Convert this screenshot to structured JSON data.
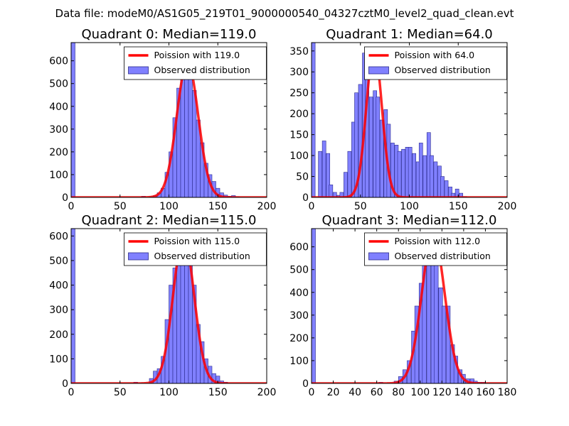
{
  "suptitle": "Data file: modeM0/AS1G05_219T01_9000000540_04327cztM0_level2_quad_clean.evt",
  "colors": {
    "bar_fill": "#8080ff",
    "bar_edge": "#2b2b8c",
    "poisson_line": "#ff0000",
    "axis": "#000000",
    "legend_edge": "#000000"
  },
  "chart_data": [
    {
      "type": "bar",
      "title": "Quadrant 0: Median=119.0",
      "xlim": [
        0,
        200
      ],
      "ylim": [
        0,
        680
      ],
      "xticks": [
        0,
        50,
        100,
        150,
        200
      ],
      "yticks": [
        0,
        100,
        200,
        300,
        400,
        500,
        600
      ],
      "legend": {
        "placement": "top-right",
        "line_label": "Poission with 119.0",
        "bar_label": "Observed distribution"
      },
      "poisson_mean": 119.0,
      "poisson_peak": 595,
      "bin_width": 4,
      "bins": [
        {
          "x": 0,
          "count": 680
        },
        {
          "x": 72,
          "count": 5
        },
        {
          "x": 80,
          "count": 3
        },
        {
          "x": 84,
          "count": 8
        },
        {
          "x": 88,
          "count": 20
        },
        {
          "x": 92,
          "count": 40
        },
        {
          "x": 96,
          "count": 110
        },
        {
          "x": 100,
          "count": 200
        },
        {
          "x": 104,
          "count": 350
        },
        {
          "x": 108,
          "count": 480
        },
        {
          "x": 112,
          "count": 520
        },
        {
          "x": 116,
          "count": 620
        },
        {
          "x": 120,
          "count": 580
        },
        {
          "x": 124,
          "count": 470
        },
        {
          "x": 128,
          "count": 340
        },
        {
          "x": 132,
          "count": 240
        },
        {
          "x": 136,
          "count": 150
        },
        {
          "x": 140,
          "count": 100
        },
        {
          "x": 144,
          "count": 70
        },
        {
          "x": 148,
          "count": 40
        },
        {
          "x": 152,
          "count": 20
        },
        {
          "x": 156,
          "count": 10
        },
        {
          "x": 160,
          "count": 5
        },
        {
          "x": 164,
          "count": 8
        },
        {
          "x": 168,
          "count": 3
        }
      ]
    },
    {
      "type": "bar",
      "title": "Quadrant 1: Median=64.0",
      "xlim": [
        0,
        200
      ],
      "ylim": [
        0,
        370
      ],
      "xticks": [
        0,
        50,
        100,
        150,
        200
      ],
      "yticks": [
        0,
        50,
        100,
        150,
        200,
        250,
        300,
        350
      ],
      "legend": {
        "placement": "top-right",
        "line_label": "Poission with 64.0",
        "bar_label": "Observed distribution"
      },
      "poisson_mean": 64.0,
      "poisson_peak": 355,
      "bin_width": 3.7,
      "bins": [
        {
          "x": 0,
          "count": 370
        },
        {
          "x": 7,
          "count": 110
        },
        {
          "x": 11,
          "count": 135
        },
        {
          "x": 15,
          "count": 105
        },
        {
          "x": 18,
          "count": 30
        },
        {
          "x": 22,
          "count": 12
        },
        {
          "x": 26,
          "count": 5
        },
        {
          "x": 29,
          "count": 12
        },
        {
          "x": 33,
          "count": 60
        },
        {
          "x": 37,
          "count": 110
        },
        {
          "x": 41,
          "count": 180
        },
        {
          "x": 44,
          "count": 250
        },
        {
          "x": 48,
          "count": 270
        },
        {
          "x": 52,
          "count": 345
        },
        {
          "x": 55,
          "count": 300
        },
        {
          "x": 59,
          "count": 240
        },
        {
          "x": 63,
          "count": 255
        },
        {
          "x": 66,
          "count": 240
        },
        {
          "x": 70,
          "count": 185
        },
        {
          "x": 74,
          "count": 210
        },
        {
          "x": 77,
          "count": 175
        },
        {
          "x": 81,
          "count": 130
        },
        {
          "x": 85,
          "count": 125
        },
        {
          "x": 88,
          "count": 110
        },
        {
          "x": 92,
          "count": 115
        },
        {
          "x": 96,
          "count": 120
        },
        {
          "x": 99,
          "count": 120
        },
        {
          "x": 103,
          "count": 105
        },
        {
          "x": 107,
          "count": 85
        },
        {
          "x": 110,
          "count": 130
        },
        {
          "x": 114,
          "count": 100
        },
        {
          "x": 118,
          "count": 155
        },
        {
          "x": 121,
          "count": 100
        },
        {
          "x": 125,
          "count": 85
        },
        {
          "x": 129,
          "count": 75
        },
        {
          "x": 132,
          "count": 50
        },
        {
          "x": 136,
          "count": 40
        },
        {
          "x": 140,
          "count": 25
        },
        {
          "x": 143,
          "count": 10
        },
        {
          "x": 147,
          "count": 20
        },
        {
          "x": 151,
          "count": 10
        },
        {
          "x": 155,
          "count": 2
        }
      ]
    },
    {
      "type": "bar",
      "title": "Quadrant 2: Median=115.0",
      "xlim": [
        0,
        200
      ],
      "ylim": [
        0,
        630
      ],
      "xticks": [
        0,
        50,
        100,
        150,
        200
      ],
      "yticks": [
        0,
        100,
        200,
        300,
        400,
        500,
        600
      ],
      "legend": {
        "placement": "top-right",
        "line_label": "Poission with 115.0",
        "bar_label": "Observed distribution"
      },
      "poisson_mean": 115.0,
      "poisson_peak": 595,
      "bin_width": 4,
      "bins": [
        {
          "x": 0,
          "count": 630
        },
        {
          "x": 64,
          "count": 5
        },
        {
          "x": 80,
          "count": 20
        },
        {
          "x": 84,
          "count": 50
        },
        {
          "x": 88,
          "count": 60
        },
        {
          "x": 92,
          "count": 110
        },
        {
          "x": 96,
          "count": 260
        },
        {
          "x": 100,
          "count": 400
        },
        {
          "x": 104,
          "count": 470
        },
        {
          "x": 108,
          "count": 480
        },
        {
          "x": 112,
          "count": 560
        },
        {
          "x": 116,
          "count": 550
        },
        {
          "x": 120,
          "count": 500
        },
        {
          "x": 124,
          "count": 400
        },
        {
          "x": 128,
          "count": 240
        },
        {
          "x": 132,
          "count": 170
        },
        {
          "x": 136,
          "count": 100
        },
        {
          "x": 140,
          "count": 70
        },
        {
          "x": 144,
          "count": 40
        },
        {
          "x": 148,
          "count": 30
        },
        {
          "x": 152,
          "count": 10
        },
        {
          "x": 156,
          "count": 5
        }
      ]
    },
    {
      "type": "bar",
      "title": "Quadrant 3: Median=112.0",
      "xlim": [
        0,
        180
      ],
      "ylim": [
        0,
        680
      ],
      "xticks": [
        0,
        20,
        40,
        60,
        80,
        100,
        120,
        140,
        160,
        180
      ],
      "yticks": [
        0,
        100,
        200,
        300,
        400,
        500,
        600
      ],
      "legend": {
        "placement": "top-right",
        "line_label": "Poission with 112.0",
        "bar_label": "Observed distribution"
      },
      "poisson_mean": 112.0,
      "poisson_peak": 650,
      "bin_width": 3.6,
      "bins": [
        {
          "x": 0,
          "count": 680
        },
        {
          "x": 62,
          "count": 5
        },
        {
          "x": 76,
          "count": 10
        },
        {
          "x": 80,
          "count": 30
        },
        {
          "x": 84,
          "count": 60
        },
        {
          "x": 88,
          "count": 100
        },
        {
          "x": 92,
          "count": 230
        },
        {
          "x": 95,
          "count": 340
        },
        {
          "x": 99,
          "count": 440
        },
        {
          "x": 102,
          "count": 570
        },
        {
          "x": 106,
          "count": 590
        },
        {
          "x": 110,
          "count": 640
        },
        {
          "x": 113,
          "count": 590
        },
        {
          "x": 117,
          "count": 420
        },
        {
          "x": 120,
          "count": 340
        },
        {
          "x": 124,
          "count": 340
        },
        {
          "x": 128,
          "count": 170
        },
        {
          "x": 131,
          "count": 120
        },
        {
          "x": 135,
          "count": 60
        },
        {
          "x": 138,
          "count": 40
        },
        {
          "x": 142,
          "count": 20
        },
        {
          "x": 146,
          "count": 20
        },
        {
          "x": 149,
          "count": 10
        },
        {
          "x": 153,
          "count": 5
        },
        {
          "x": 156,
          "count": 5
        }
      ]
    }
  ]
}
